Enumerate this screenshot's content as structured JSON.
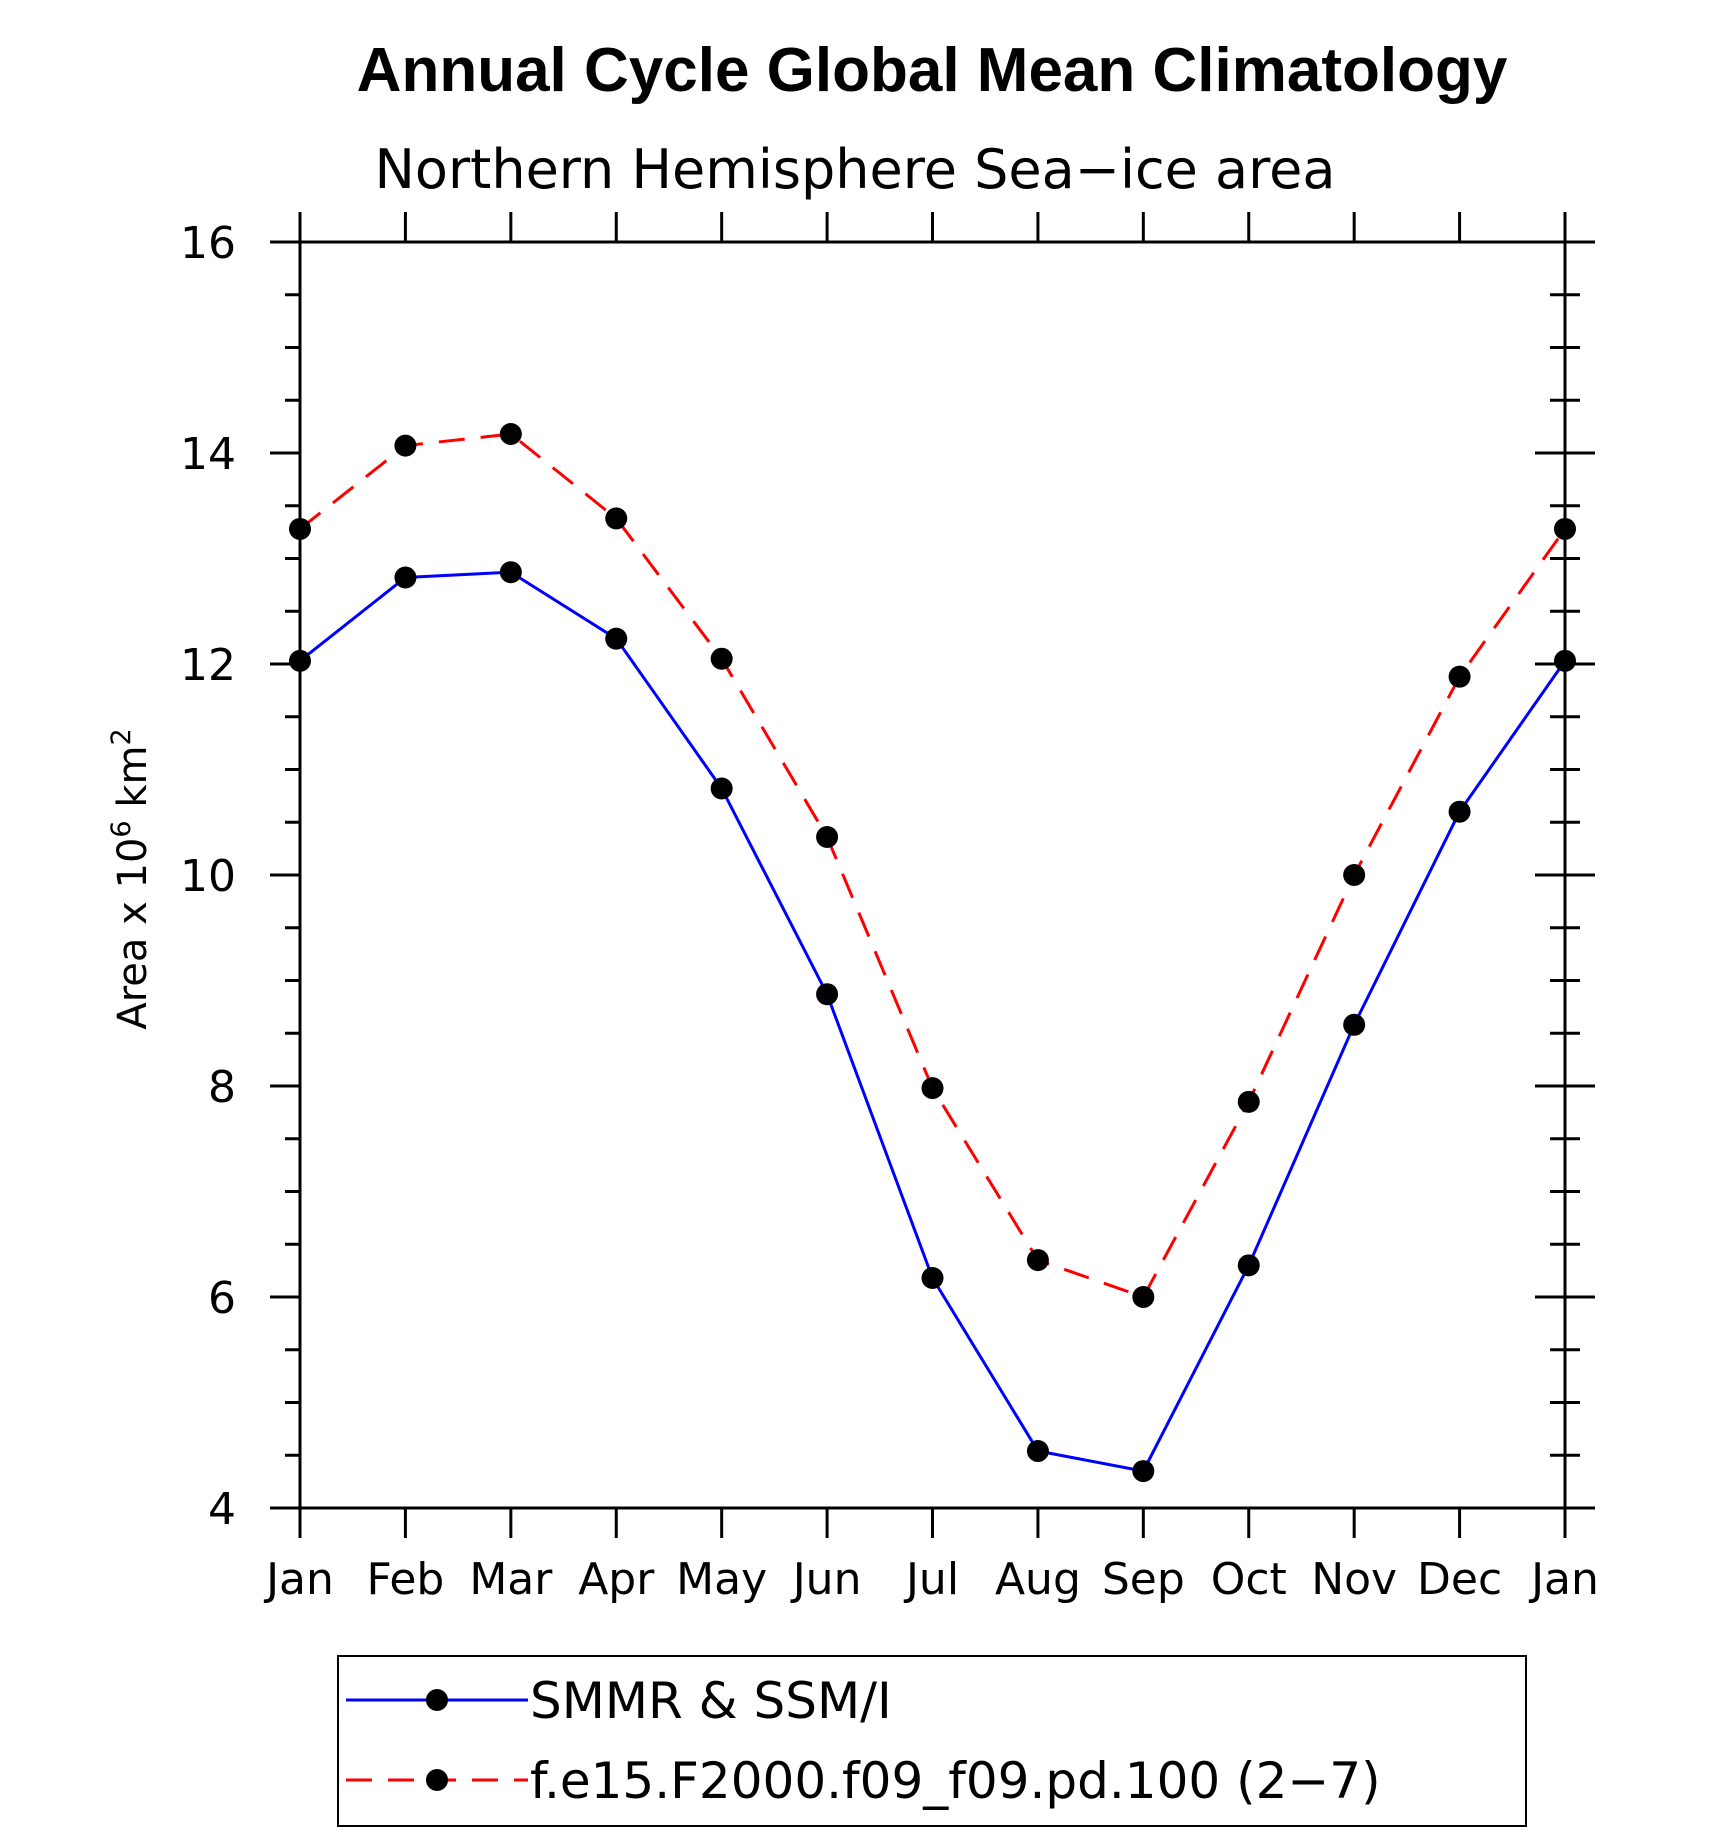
{
  "chart_data": {
    "type": "line",
    "title": "Annual Cycle Global Mean Climatology",
    "subtitle": "Northern Hemisphere Sea−ice area",
    "ylabel": {
      "prefix": "Area x 10",
      "exp1": "6",
      "mid": " km",
      "exp2": "2"
    },
    "categories": [
      "Jan",
      "Feb",
      "Mar",
      "Apr",
      "May",
      "Jun",
      "Jul",
      "Aug",
      "Sep",
      "Oct",
      "Nov",
      "Dec",
      "Jan"
    ],
    "ylim": [
      4,
      16
    ],
    "yticks": [
      4,
      6,
      8,
      10,
      12,
      14,
      16
    ],
    "series": [
      {
        "name": "SMMR & SSM/I",
        "color": "#0000ff",
        "dash": "solid",
        "marker": "filled-circle",
        "values": [
          12.03,
          12.82,
          12.87,
          12.24,
          10.82,
          8.87,
          6.18,
          4.54,
          4.35,
          6.3,
          8.58,
          10.6,
          12.03
        ]
      },
      {
        "name": "f.e15.F2000.f09_f09.pd.100 (2−7)",
        "color": "#ff0000",
        "dash": "dashed",
        "marker": "filled-circle",
        "values": [
          13.28,
          14.07,
          14.18,
          13.38,
          12.05,
          10.36,
          7.98,
          6.35,
          6.0,
          7.85,
          10.0,
          11.88,
          13.28
        ]
      }
    ],
    "marker_color": "#000000",
    "grid": false,
    "legend_position": "bottom"
  }
}
